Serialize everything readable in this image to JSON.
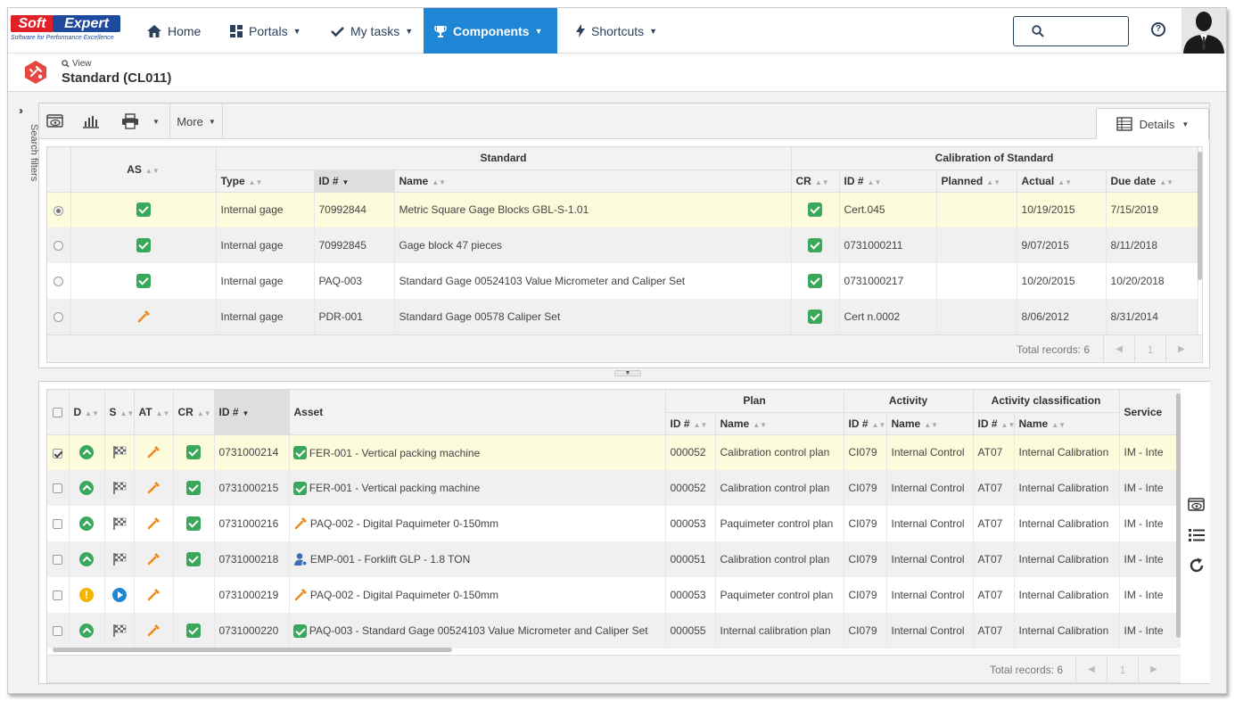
{
  "brand": {
    "soft": "Soft",
    "expert": "Expert",
    "tagline": "Software for Performance Excellence"
  },
  "nav": [
    {
      "label": "Home",
      "icon": "home-icon"
    },
    {
      "label": "Portals",
      "icon": "portals-icon"
    },
    {
      "label": "My tasks",
      "icon": "check-icon"
    },
    {
      "label": "Components",
      "icon": "trophy-icon",
      "active": true
    },
    {
      "label": "Shortcuts",
      "icon": "lightning-icon"
    }
  ],
  "search": {
    "placeholder": ""
  },
  "header": {
    "view_label": "View",
    "title": "Standard (CL011)"
  },
  "sidebar": {
    "label": "Search filters"
  },
  "toolbar": {
    "more_label": "More",
    "details_label": "Details"
  },
  "standards": {
    "groups": {
      "as": "AS",
      "standard": "Standard",
      "calibration": "Calibration of Standard"
    },
    "columns": {
      "type": "Type",
      "id": "ID #",
      "name": "Name",
      "cr": "CR",
      "cal_id": "ID #",
      "planned": "Planned",
      "actual": "Actual",
      "due": "Due date"
    },
    "rows": [
      {
        "selected": true,
        "as": "ok",
        "type": "Internal gage",
        "id": "70992844",
        "name": "Metric Square Gage Blocks GBL-S-1.01",
        "cr": "ok",
        "cal_id": "Cert.045",
        "planned": "",
        "actual": "10/19/2015",
        "due": "7/15/2019"
      },
      {
        "selected": false,
        "as": "ok",
        "type": "Internal gage",
        "id": "70992845",
        "name": "Gage block 47 pieces",
        "cr": "ok",
        "cal_id": "0731000211",
        "planned": "",
        "actual": "9/07/2015",
        "due": "8/11/2018"
      },
      {
        "selected": false,
        "as": "ok",
        "type": "Internal gage",
        "id": "PAQ-003",
        "name": "Standard Gage 00524103 Value Micrometer and Caliper Set",
        "cr": "ok",
        "cal_id": "0731000217",
        "planned": "",
        "actual": "10/20/2015",
        "due": "10/20/2018"
      },
      {
        "selected": false,
        "as": "tool",
        "type": "Internal gage",
        "id": "PDR-001",
        "name": "Standard Gage 00578 Caliper Set",
        "cr": "ok",
        "cal_id": "Cert n.0002",
        "planned": "",
        "actual": "8/06/2012",
        "due": "8/31/2014"
      }
    ],
    "total_records": "Total records: 6",
    "page": "1"
  },
  "activities": {
    "groups": {
      "plan": "Plan",
      "activity": "Activity",
      "classification": "Activity classification"
    },
    "columns": {
      "d": "D",
      "s": "S",
      "at": "AT",
      "cr": "CR",
      "id": "ID #",
      "asset": "Asset",
      "plan_id": "ID #",
      "plan_name": "Name",
      "act_id": "ID #",
      "act_name": "Name",
      "cls_id": "ID #",
      "cls_name": "Name",
      "service": "Service"
    },
    "rows": [
      {
        "checked": true,
        "d": "up",
        "s": "flag",
        "cr": "ok",
        "id": "0731000214",
        "asset_icon": "check",
        "asset": "FER-001 - Vertical packing machine",
        "plan_id": "000052",
        "plan_name": "Calibration control plan",
        "act_id": "CI079",
        "act_name": "Internal Control",
        "cls_id": "AT07",
        "cls_name": "Internal Calibration",
        "service": "IM - Inte"
      },
      {
        "checked": false,
        "d": "up",
        "s": "flag",
        "cr": "ok",
        "id": "0731000215",
        "asset_icon": "check",
        "asset": "FER-001 - Vertical packing machine",
        "plan_id": "000052",
        "plan_name": "Calibration control plan",
        "act_id": "CI079",
        "act_name": "Internal Control",
        "cls_id": "AT07",
        "cls_name": "Internal Calibration",
        "service": "IM - Inte"
      },
      {
        "checked": false,
        "d": "up",
        "s": "flag",
        "cr": "ok",
        "id": "0731000216",
        "asset_icon": "tool",
        "asset": "PAQ-002 - Digital Paquimeter 0-150mm",
        "plan_id": "000053",
        "plan_name": "Paquimeter control plan",
        "act_id": "CI079",
        "act_name": "Internal Control",
        "cls_id": "AT07",
        "cls_name": "Internal Calibration",
        "service": "IM - Inte"
      },
      {
        "checked": false,
        "d": "up",
        "s": "flag",
        "cr": "ok",
        "id": "0731000218",
        "asset_icon": "person",
        "asset": "EMP-001 - Forklift GLP - 1.8 TON",
        "plan_id": "000051",
        "plan_name": "Calibration control plan",
        "act_id": "CI079",
        "act_name": "Internal Control",
        "cls_id": "AT07",
        "cls_name": "Internal Calibration",
        "service": "IM - Inte"
      },
      {
        "checked": false,
        "d": "warn",
        "s": "play",
        "cr": "",
        "id": "0731000219",
        "asset_icon": "tool",
        "asset": "PAQ-002 - Digital Paquimeter 0-150mm",
        "plan_id": "000053",
        "plan_name": "Paquimeter control plan",
        "act_id": "CI079",
        "act_name": "Internal Control",
        "cls_id": "AT07",
        "cls_name": "Internal Calibration",
        "service": "IM - Inte"
      },
      {
        "checked": false,
        "d": "up",
        "s": "flag",
        "cr": "ok",
        "id": "0731000220",
        "asset_icon": "check",
        "asset": "PAQ-003 - Standard Gage 00524103 Value Micrometer and Caliper Set",
        "plan_id": "000055",
        "plan_name": "Internal calibration plan",
        "act_id": "CI079",
        "act_name": "Internal Control",
        "cls_id": "AT07",
        "cls_name": "Internal Calibration",
        "service": "IM - Inte"
      }
    ],
    "total_records": "Total records: 6",
    "page": "1"
  },
  "colors": {
    "accent": "#1f86d6",
    "success": "#3aa85a",
    "tool": "#f08a24",
    "warning": "#f5b400",
    "selected_row": "#fcfcdc"
  }
}
